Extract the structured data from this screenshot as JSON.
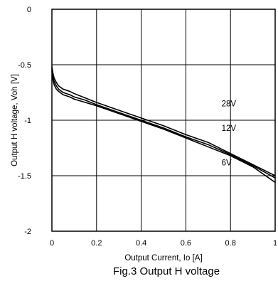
{
  "chart_data": {
    "type": "line",
    "title": "",
    "caption": "Fig.3 Output H voltage",
    "xlabel": "Output Current, Io [A]",
    "ylabel": "Output H voltage, Voh [V]",
    "xlim": [
      0,
      1
    ],
    "ylim": [
      -2,
      0
    ],
    "x_ticks": [
      "0",
      "0.2",
      "0.4",
      "0.6",
      "0.8",
      "1"
    ],
    "y_ticks": [
      "0",
      "-0.5",
      "-1",
      "-1.5",
      "-2"
    ],
    "grid": true,
    "series": [
      {
        "name": "28V",
        "x": [
          0,
          0.005,
          0.01,
          0.02,
          0.03,
          0.05,
          0.08,
          0.1,
          0.15,
          0.2,
          0.3,
          0.4,
          0.5,
          0.6,
          0.7,
          0.8,
          0.9,
          1.0
        ],
        "y": [
          -0.52,
          -0.58,
          -0.62,
          -0.66,
          -0.69,
          -0.72,
          -0.74,
          -0.76,
          -0.8,
          -0.84,
          -0.91,
          -0.98,
          -1.05,
          -1.13,
          -1.2,
          -1.3,
          -1.4,
          -1.5
        ]
      },
      {
        "name": "12V",
        "x": [
          0,
          0.005,
          0.01,
          0.02,
          0.03,
          0.05,
          0.08,
          0.1,
          0.15,
          0.2,
          0.3,
          0.4,
          0.5,
          0.6,
          0.7,
          0.8,
          0.9,
          1.0
        ],
        "y": [
          -0.54,
          -0.61,
          -0.65,
          -0.69,
          -0.72,
          -0.75,
          -0.77,
          -0.79,
          -0.82,
          -0.86,
          -0.93,
          -1.0,
          -1.07,
          -1.15,
          -1.22,
          -1.31,
          -1.41,
          -1.52
        ]
      },
      {
        "name": "6V",
        "x": [
          0,
          0.005,
          0.01,
          0.02,
          0.03,
          0.05,
          0.08,
          0.1,
          0.15,
          0.2,
          0.3,
          0.4,
          0.5,
          0.6,
          0.7,
          0.8,
          0.9,
          1.0
        ],
        "y": [
          -0.56,
          -0.64,
          -0.68,
          -0.72,
          -0.74,
          -0.77,
          -0.79,
          -0.81,
          -0.84,
          -0.87,
          -0.94,
          -1.01,
          -1.08,
          -1.16,
          -1.24,
          -1.32,
          -1.42,
          -1.56
        ]
      }
    ],
    "annotations": [
      {
        "text": "28V",
        "x": 0.76,
        "y": -0.85
      },
      {
        "text": "12V",
        "x": 0.76,
        "y": -1.07
      },
      {
        "text": "6V",
        "x": 0.76,
        "y": -1.38
      }
    ]
  }
}
